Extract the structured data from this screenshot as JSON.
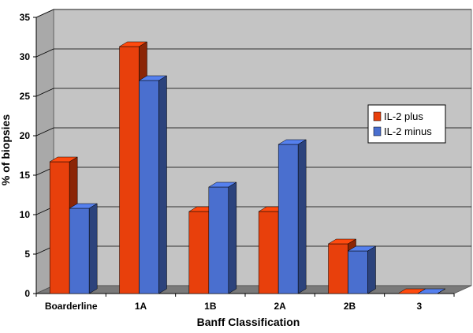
{
  "chart_data": {
    "type": "bar",
    "title": "",
    "xlabel": "Banff Classification",
    "ylabel": "% of biopsies",
    "categories": [
      "Boarderline",
      "1A",
      "1B",
      "2A",
      "2B",
      "3"
    ],
    "series": [
      {
        "name": "IL-2 plus",
        "values": [
          16.7,
          31.3,
          10.4,
          10.4,
          6.3,
          0
        ],
        "color": "#e8400c"
      },
      {
        "name": "IL-2 minus",
        "values": [
          10.8,
          27.0,
          13.5,
          18.9,
          5.4,
          0
        ],
        "color": "#4a6fcf"
      }
    ],
    "ylim": [
      0,
      35
    ],
    "yticks": [
      0,
      5,
      10,
      15,
      20,
      25,
      30,
      35
    ],
    "grid": true,
    "legend_position": "right"
  }
}
